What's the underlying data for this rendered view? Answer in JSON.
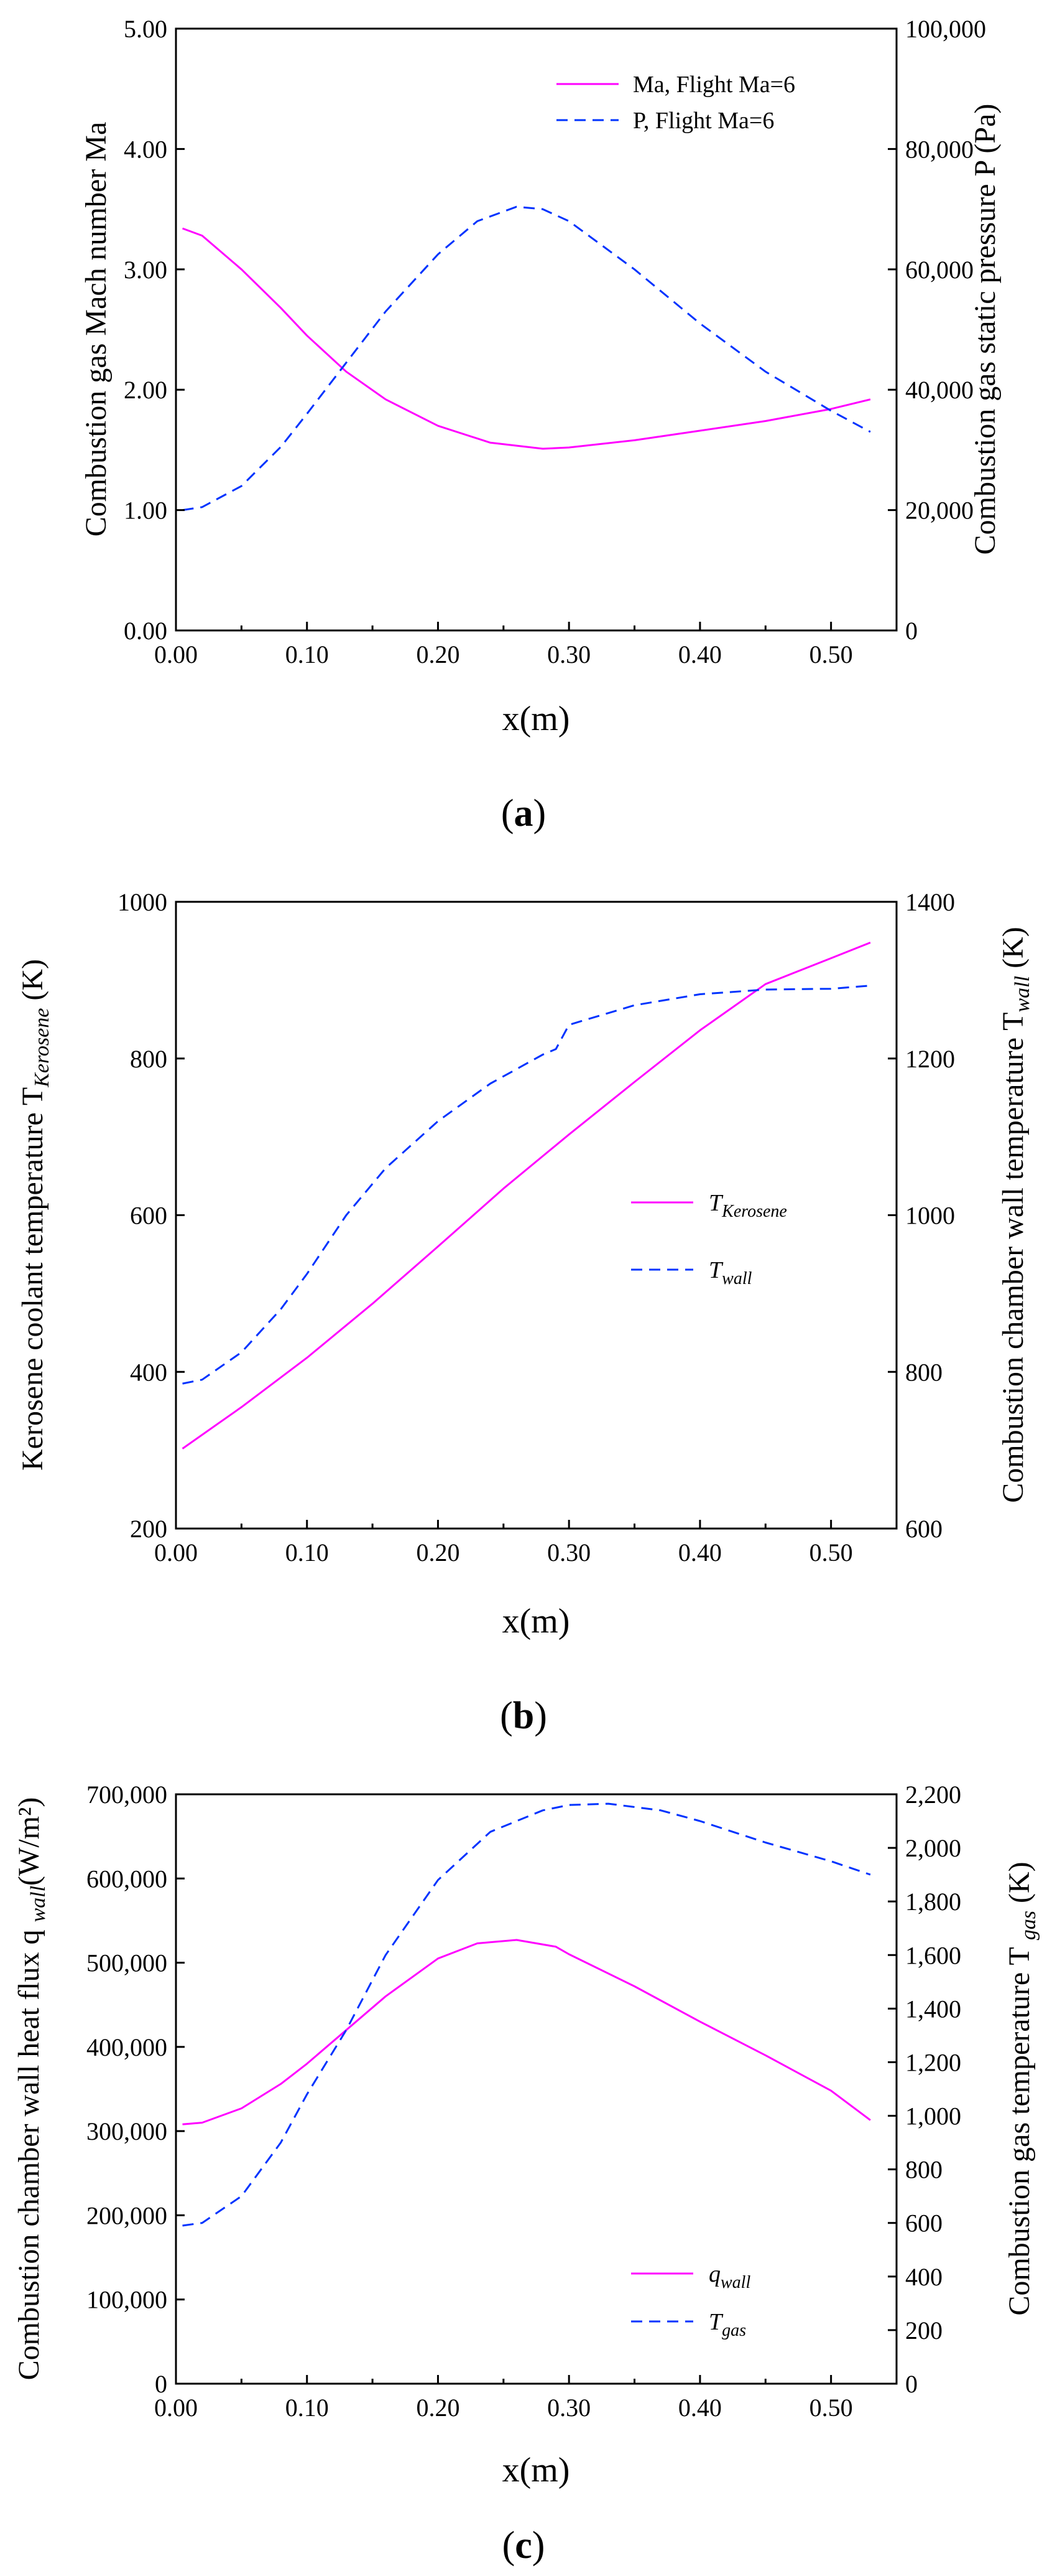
{
  "colors": {
    "series_a": "#ff00ff",
    "series_b": "#0033ff",
    "axis": "#000000"
  },
  "chart_data": [
    {
      "type": "line",
      "panel_label": "a",
      "xlabel": "x(m)",
      "ylabel": "Combustion gas Mach number Ma",
      "y2label": "Combustion gas static pressure P (Pa)",
      "xlim": [
        0,
        0.55
      ],
      "ylim": [
        0,
        5
      ],
      "y2lim": [
        0,
        100000
      ],
      "xticks": [
        0,
        0.1,
        0.2,
        0.3,
        0.4,
        0.5
      ],
      "xtick_labels": [
        "0.00",
        "0.10",
        "0.20",
        "0.30",
        "0.40",
        "0.50"
      ],
      "yticks": [
        0,
        1,
        2,
        3,
        4,
        5
      ],
      "ytick_labels": [
        "0.00",
        "1.00",
        "2.00",
        "3.00",
        "4.00",
        "5.00"
      ],
      "y2ticks": [
        0,
        20000,
        40000,
        60000,
        80000,
        100000
      ],
      "y2tick_labels": [
        "0",
        "20,000",
        "40,000",
        "60,000",
        "80,000",
        "100,000"
      ],
      "legend_position": "top-right",
      "series": [
        {
          "name": "Ma, Flight Ma=6",
          "legend_parts": [
            "Ma, Flight Ma=6"
          ],
          "axis": "left",
          "style": "solid",
          "color_key": "series_a",
          "x": [
            0.005,
            0.02,
            0.05,
            0.08,
            0.1,
            0.13,
            0.16,
            0.2,
            0.24,
            0.28,
            0.3,
            0.35,
            0.4,
            0.45,
            0.5,
            0.53
          ],
          "y": [
            3.34,
            3.28,
            3.0,
            2.68,
            2.45,
            2.15,
            1.92,
            1.7,
            1.56,
            1.51,
            1.52,
            1.58,
            1.66,
            1.74,
            1.84,
            1.92
          ]
        },
        {
          "name": "P, Flight Ma=6",
          "legend_parts": [
            "P, Flight Ma=6"
          ],
          "axis": "right",
          "style": "dashed",
          "color_key": "series_b",
          "x": [
            0.005,
            0.02,
            0.05,
            0.08,
            0.1,
            0.13,
            0.16,
            0.2,
            0.23,
            0.26,
            0.28,
            0.3,
            0.35,
            0.4,
            0.45,
            0.5,
            0.53
          ],
          "y": [
            20000,
            20500,
            24000,
            30500,
            36000,
            44500,
            53000,
            62500,
            68000,
            70400,
            70000,
            68000,
            60000,
            51000,
            43000,
            36500,
            33000
          ]
        }
      ]
    },
    {
      "type": "line",
      "panel_label": "b",
      "xlabel": "x(m)",
      "ylabel": "Kerosene coolant temperature T",
      "ylabel_sub": "Kerosene",
      "ylabel_suffix": " (K)",
      "y2label": "Combustion chamber wall temperature T",
      "y2label_sub": "wall",
      "y2label_suffix": " (K)",
      "xlim": [
        0,
        0.55
      ],
      "ylim": [
        200,
        1000
      ],
      "y2lim": [
        600,
        1400
      ],
      "xticks": [
        0,
        0.1,
        0.2,
        0.3,
        0.4,
        0.5
      ],
      "xtick_labels": [
        "0.00",
        "0.10",
        "0.20",
        "0.30",
        "0.40",
        "0.50"
      ],
      "yticks": [
        200,
        400,
        600,
        800,
        1000
      ],
      "ytick_labels": [
        "200",
        "400",
        "600",
        "800",
        "1000"
      ],
      "y2ticks": [
        600,
        800,
        1000,
        1200,
        1400
      ],
      "y2tick_labels": [
        "600",
        "800",
        "1000",
        "1200",
        "1400"
      ],
      "legend_position": "center-right",
      "series": [
        {
          "name": "T_Kerosene",
          "legend_parts": [
            "T",
            "Kerosene"
          ],
          "axis": "left",
          "style": "solid",
          "color_key": "series_a",
          "x": [
            0.005,
            0.05,
            0.1,
            0.15,
            0.2,
            0.25,
            0.3,
            0.35,
            0.4,
            0.45,
            0.5,
            0.53
          ],
          "y": [
            302,
            355,
            418,
            487,
            560,
            634,
            703,
            770,
            836,
            895,
            928,
            948
          ]
        },
        {
          "name": "T_wall",
          "legend_parts": [
            "T",
            "wall"
          ],
          "axis": "right",
          "style": "dashed",
          "color_key": "series_b",
          "x": [
            0.005,
            0.02,
            0.05,
            0.08,
            0.1,
            0.13,
            0.16,
            0.2,
            0.24,
            0.28,
            0.29,
            0.3,
            0.35,
            0.4,
            0.45,
            0.5,
            0.53
          ],
          "y": [
            785,
            790,
            825,
            880,
            925,
            1000,
            1060,
            1120,
            1168,
            1205,
            1212,
            1243,
            1268,
            1282,
            1288,
            1289,
            1293
          ]
        }
      ]
    },
    {
      "type": "line",
      "panel_label": "c",
      "xlabel": "x(m)",
      "ylabel": "Combustion chamber wall heat flux q",
      "ylabel_sub": "wall",
      "ylabel_suffix": "(W/m²)",
      "y2label": "Combustion gas temperature T",
      "y2label_sub": "gas",
      "y2label_suffix": " (K)",
      "xlim": [
        0,
        0.55
      ],
      "ylim": [
        0,
        700000
      ],
      "y2lim": [
        0,
        2200
      ],
      "xticks": [
        0,
        0.1,
        0.2,
        0.3,
        0.4,
        0.5
      ],
      "xtick_labels": [
        "0.00",
        "0.10",
        "0.20",
        "0.30",
        "0.40",
        "0.50"
      ],
      "yticks": [
        0,
        100000,
        200000,
        300000,
        400000,
        500000,
        600000,
        700000
      ],
      "ytick_labels": [
        "0",
        "100,000",
        "200,000",
        "300,000",
        "400,000",
        "500,000",
        "600,000",
        "700,000"
      ],
      "y2ticks": [
        0,
        200,
        400,
        600,
        800,
        1000,
        1200,
        1400,
        1600,
        1800,
        2000,
        2200
      ],
      "y2tick_labels": [
        "0",
        "200",
        "400",
        "600",
        "800",
        "1,000",
        "1,200",
        "1,400",
        "1,600",
        "1,800",
        "2,000",
        "2,200"
      ],
      "legend_position": "bottom-right",
      "series": [
        {
          "name": "q_wall",
          "legend_parts": [
            "q",
            "wall"
          ],
          "axis": "left",
          "style": "solid",
          "color_key": "series_a",
          "x": [
            0.005,
            0.02,
            0.05,
            0.08,
            0.1,
            0.13,
            0.16,
            0.2,
            0.23,
            0.26,
            0.29,
            0.3,
            0.35,
            0.4,
            0.45,
            0.5,
            0.53
          ],
          "y": [
            308000,
            310000,
            327000,
            356000,
            380000,
            420000,
            460000,
            505000,
            523000,
            527000,
            519000,
            510000,
            472000,
            430000,
            390000,
            348000,
            313000
          ]
        },
        {
          "name": "T_gas",
          "legend_parts": [
            "T",
            "gas"
          ],
          "axis": "right",
          "style": "dashed",
          "color_key": "series_b",
          "x": [
            0.005,
            0.02,
            0.05,
            0.08,
            0.1,
            0.13,
            0.16,
            0.2,
            0.24,
            0.28,
            0.3,
            0.33,
            0.37,
            0.4,
            0.45,
            0.5,
            0.53
          ],
          "y": [
            590,
            600,
            700,
            900,
            1080,
            1320,
            1600,
            1880,
            2060,
            2140,
            2160,
            2165,
            2140,
            2100,
            2020,
            1950,
            1900
          ]
        }
      ]
    }
  ]
}
